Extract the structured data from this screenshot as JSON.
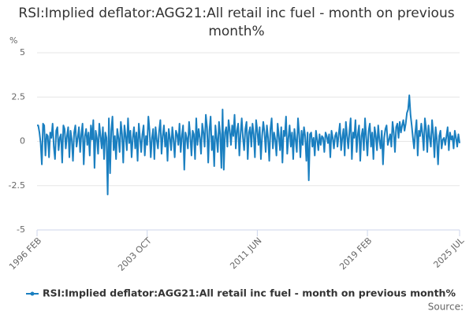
{
  "chart_data": {
    "type": "line",
    "title": "RSI:Implied deflator:AGG21:All retail inc fuel - month on previous month%",
    "y_label": "%",
    "source": "Source:",
    "categories": [
      "1996 FEB",
      null,
      null,
      null,
      null,
      null,
      null,
      null,
      null,
      null,
      null,
      null,
      null,
      null,
      null,
      null,
      null,
      null,
      null,
      null,
      null,
      null,
      null,
      null,
      null,
      null,
      null,
      null,
      null,
      null,
      null,
      null,
      null,
      null,
      null,
      null,
      null,
      null,
      null,
      null,
      null,
      null,
      null,
      null,
      null,
      null,
      null,
      null,
      null,
      null,
      null,
      null,
      null,
      null,
      null,
      null,
      null,
      null,
      null,
      null,
      null,
      null,
      null,
      null,
      null,
      null,
      null,
      null,
      null,
      null,
      null,
      null,
      null,
      null,
      null,
      null,
      null,
      null,
      null,
      null,
      null,
      null,
      null,
      null,
      null,
      null,
      null,
      null,
      null,
      null,
      null,
      null,
      "2003 OCT",
      null,
      null,
      null,
      null,
      null,
      null,
      null,
      null,
      null,
      null,
      null,
      null,
      null,
      null,
      null,
      null,
      null,
      null,
      null,
      null,
      null,
      null,
      null,
      null,
      null,
      null,
      null,
      null,
      null,
      null,
      null,
      null,
      null,
      null,
      null,
      null,
      null,
      null,
      null,
      null,
      null,
      null,
      null,
      null,
      null,
      null,
      null,
      null,
      null,
      null,
      null,
      null,
      null,
      null,
      null,
      null,
      null,
      null,
      null,
      null,
      null,
      null,
      null,
      null,
      null,
      null,
      null,
      null,
      null,
      null,
      null,
      null,
      null,
      null,
      null,
      null,
      null,
      null,
      null,
      null,
      null,
      null,
      null,
      null,
      null,
      null,
      null,
      null,
      null,
      null,
      null,
      "2011 JUN",
      null,
      null,
      null,
      null,
      null,
      null,
      null,
      null,
      null,
      null,
      null,
      null,
      null,
      null,
      null,
      null,
      null,
      null,
      null,
      null,
      null,
      null,
      null,
      null,
      null,
      null,
      null,
      null,
      null,
      null,
      null,
      null,
      null,
      null,
      null,
      null,
      null,
      null,
      null,
      null,
      null,
      null,
      null,
      null,
      null,
      null,
      null,
      null,
      null,
      null,
      null,
      null,
      null,
      null,
      null,
      null,
      null,
      null,
      null,
      null,
      null,
      null,
      null,
      null,
      null,
      null,
      null,
      null,
      null,
      null,
      null,
      null,
      null,
      null,
      null,
      null,
      null,
      null,
      null,
      null,
      null,
      null,
      null,
      null,
      null,
      null,
      null,
      null,
      null,
      null,
      null,
      "2019 FEB",
      null,
      null,
      null,
      null,
      null,
      null,
      null,
      null,
      null,
      null,
      null,
      null,
      null,
      null,
      null,
      null,
      null,
      null,
      null,
      null,
      null,
      null,
      null,
      null,
      null,
      null,
      null,
      null,
      null,
      null,
      null,
      null,
      null,
      null,
      null,
      null,
      null,
      null,
      null,
      null,
      null,
      null,
      null,
      null,
      null,
      null,
      null,
      null,
      null,
      null,
      null,
      null,
      null,
      null,
      null,
      null,
      null,
      null,
      null,
      null,
      null,
      null,
      null,
      null,
      null,
      null,
      null,
      null,
      null,
      null,
      null,
      null,
      null,
      null,
      null,
      null,
      "2025 JUL"
    ],
    "series": [
      {
        "name": "RSI:Implied deflator:AGG21:All retail inc fuel - month on previous month%",
        "color": "#1a7fc0",
        "values": [
          0.9,
          0.9,
          0.5,
          -0.1,
          -1.3,
          1.0,
          0.9,
          -0.8,
          0.4,
          0.3,
          -0.9,
          0.5,
          0.2,
          1.0,
          -0.3,
          -1.0,
          0.6,
          0.8,
          -0.5,
          0.2,
          0.4,
          -1.2,
          0.9,
          0.7,
          -0.4,
          0.3,
          0.8,
          -0.9,
          0.6,
          0.1,
          -1.1,
          0.5,
          0.9,
          -0.3,
          0.2,
          0.8,
          -0.6,
          0.4,
          1.0,
          -1.3,
          0.3,
          0.7,
          -0.2,
          0.5,
          -0.8,
          0.9,
          0.1,
          1.2,
          -1.5,
          0.6,
          0.2,
          -0.7,
          1.0,
          0.3,
          -0.4,
          0.8,
          -1.0,
          0.5,
          0.2,
          -3.0,
          1.3,
          -1.8,
          0.6,
          1.4,
          -0.5,
          0.3,
          -1.0,
          0.7,
          0.2,
          -0.6,
          1.1,
          0.4,
          -1.2,
          0.9,
          0.3,
          -0.5,
          1.3,
          -0.1,
          0.6,
          -0.9,
          0.2,
          0.8,
          -0.4,
          0.5,
          -1.1,
          1.0,
          0.2,
          -0.6,
          0.4,
          0.9,
          -0.8,
          0.3,
          -0.2,
          1.4,
          0.6,
          -0.9,
          0.2,
          0.7,
          -1.0,
          0.8,
          0.1,
          -0.4,
          0.6,
          1.2,
          -0.7,
          0.3,
          0.9,
          -0.3,
          0.5,
          -1.1,
          0.7,
          0.2,
          -0.5,
          0.8,
          0.1,
          -0.9,
          0.6,
          0.4,
          -0.2,
          1.0,
          -0.6,
          0.3,
          0.9,
          -1.6,
          0.5,
          0.2,
          -0.4,
          1.1,
          0.3,
          -0.8,
          0.6,
          0.4,
          -1.0,
          1.3,
          -0.2,
          0.7,
          0.2,
          -0.7,
          1.0,
          0.5,
          -0.3,
          1.5,
          0.8,
          -1.2,
          0.6,
          1.4,
          -0.5,
          0.3,
          -1.4,
          0.9,
          0.2,
          -0.6,
          1.1,
          0.4,
          -1.5,
          1.8,
          -1.6,
          0.5,
          0.8,
          -0.3,
          1.2,
          0.6,
          -0.2,
          0.9,
          0.3,
          1.5,
          -0.4,
          0.6,
          1.0,
          -0.8,
          0.4,
          1.3,
          0.2,
          -0.5,
          0.7,
          1.1,
          -1.0,
          0.5,
          0.8,
          -0.3,
          1.0,
          0.4,
          -0.9,
          1.2,
          0.6,
          -0.2,
          0.8,
          -1.0,
          0.3,
          1.1,
          0.5,
          -0.6,
          0.9,
          0.2,
          -1.1,
          0.7,
          1.3,
          -0.4,
          0.5,
          0.1,
          -0.8,
          1.0,
          0.3,
          -0.5,
          0.8,
          -1.2,
          0.6,
          0.3,
          1.4,
          -0.7,
          0.2,
          0.9,
          -0.3,
          0.5,
          -1.0,
          0.7,
          0.1,
          -0.6,
          1.3,
          0.4,
          -0.9,
          0.6,
          -0.2,
          0.8,
          0.3,
          -1.1,
          0.5,
          -2.2,
          0.4,
          0.5,
          -0.3,
          0.2,
          -0.8,
          0.6,
          0.1,
          -0.5,
          0.4,
          -0.2,
          0.3,
          0.2,
          -0.6,
          0.5,
          0.3,
          -0.1,
          0.4,
          -0.9,
          0.6,
          0.2,
          -0.4,
          0.3,
          0.5,
          -0.3,
          0.4,
          1.0,
          -0.5,
          0.2,
          0.7,
          -0.8,
          1.1,
          0.3,
          -0.4,
          0.6,
          1.3,
          -1.0,
          0.5,
          0.2,
          1.2,
          -0.6,
          0.4,
          0.9,
          -1.1,
          0.3,
          0.7,
          -0.5,
          1.3,
          0.2,
          -0.8,
          0.6,
          1.0,
          -0.3,
          0.5,
          -1.0,
          0.8,
          0.3,
          -0.5,
          0.9,
          0.1,
          -0.4,
          0.6,
          -1.3,
          0.2,
          0.7,
          0.9,
          -0.2,
          0.1,
          0.4,
          -0.3,
          1.1,
          0.5,
          -0.6,
          0.8,
          1.0,
          0.2,
          1.1,
          0.5,
          0.9,
          1.2,
          0.6,
          1.0,
          1.6,
          1.8,
          2.6,
          1.5,
          0.9,
          0.2,
          -0.4,
          0.5,
          1.2,
          -0.8,
          0.6,
          0.3,
          1.0,
          0.4,
          -0.5,
          1.3,
          0.7,
          -0.6,
          0.9,
          0.2,
          -0.3,
          1.2,
          0.4,
          -0.9,
          0.8,
          0.1,
          -1.3,
          0.3,
          0.6,
          -0.4,
          0.1,
          0.2,
          -0.2,
          0.3,
          0.8,
          -0.5,
          0.5,
          0.1,
          0.3,
          -0.4,
          0.6,
          0.2,
          -0.3,
          0.4,
          -0.1
        ]
      }
    ],
    "ylim": [
      -5,
      5
    ],
    "yticks": [
      -5,
      {
        "value": -2.5,
        "label": "-2.5"
      },
      0,
      {
        "value": 2.5,
        "label": "2.5"
      },
      5
    ],
    "grid": true
  }
}
